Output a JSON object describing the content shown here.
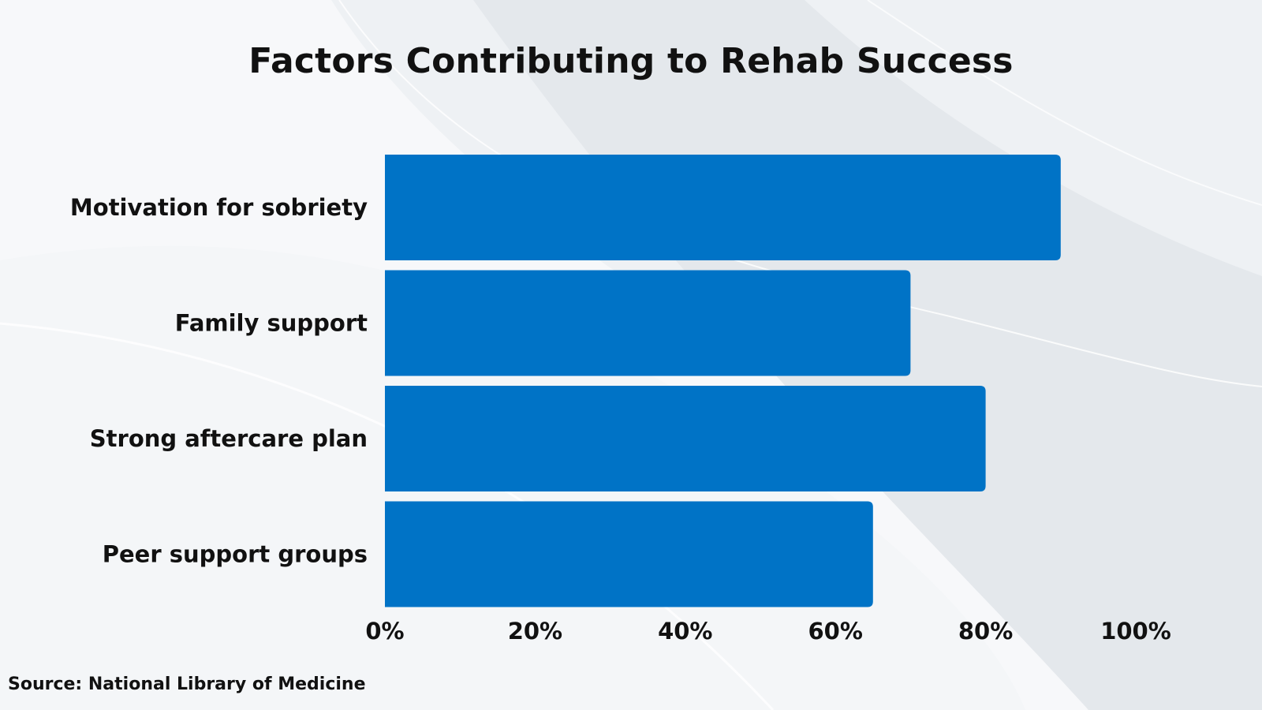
{
  "chart_data": {
    "type": "bar",
    "orientation": "horizontal",
    "title": "Factors Contributing to Rehab Success",
    "categories": [
      "Motivation for sobriety",
      "Family support",
      "Strong aftercare plan",
      "Peer support groups"
    ],
    "values": [
      90,
      70,
      80,
      65
    ],
    "unit": "%",
    "xlim": [
      0,
      100
    ],
    "xticks": [
      0,
      20,
      40,
      60,
      80,
      100
    ],
    "xtick_labels": [
      "0%",
      "20%",
      "40%",
      "60%",
      "80%",
      "100%"
    ],
    "xlabel": "",
    "ylabel": "",
    "grid": false,
    "legend": "none",
    "bar_color": "#0073c6"
  },
  "source": "Source: National Library of Medicine"
}
